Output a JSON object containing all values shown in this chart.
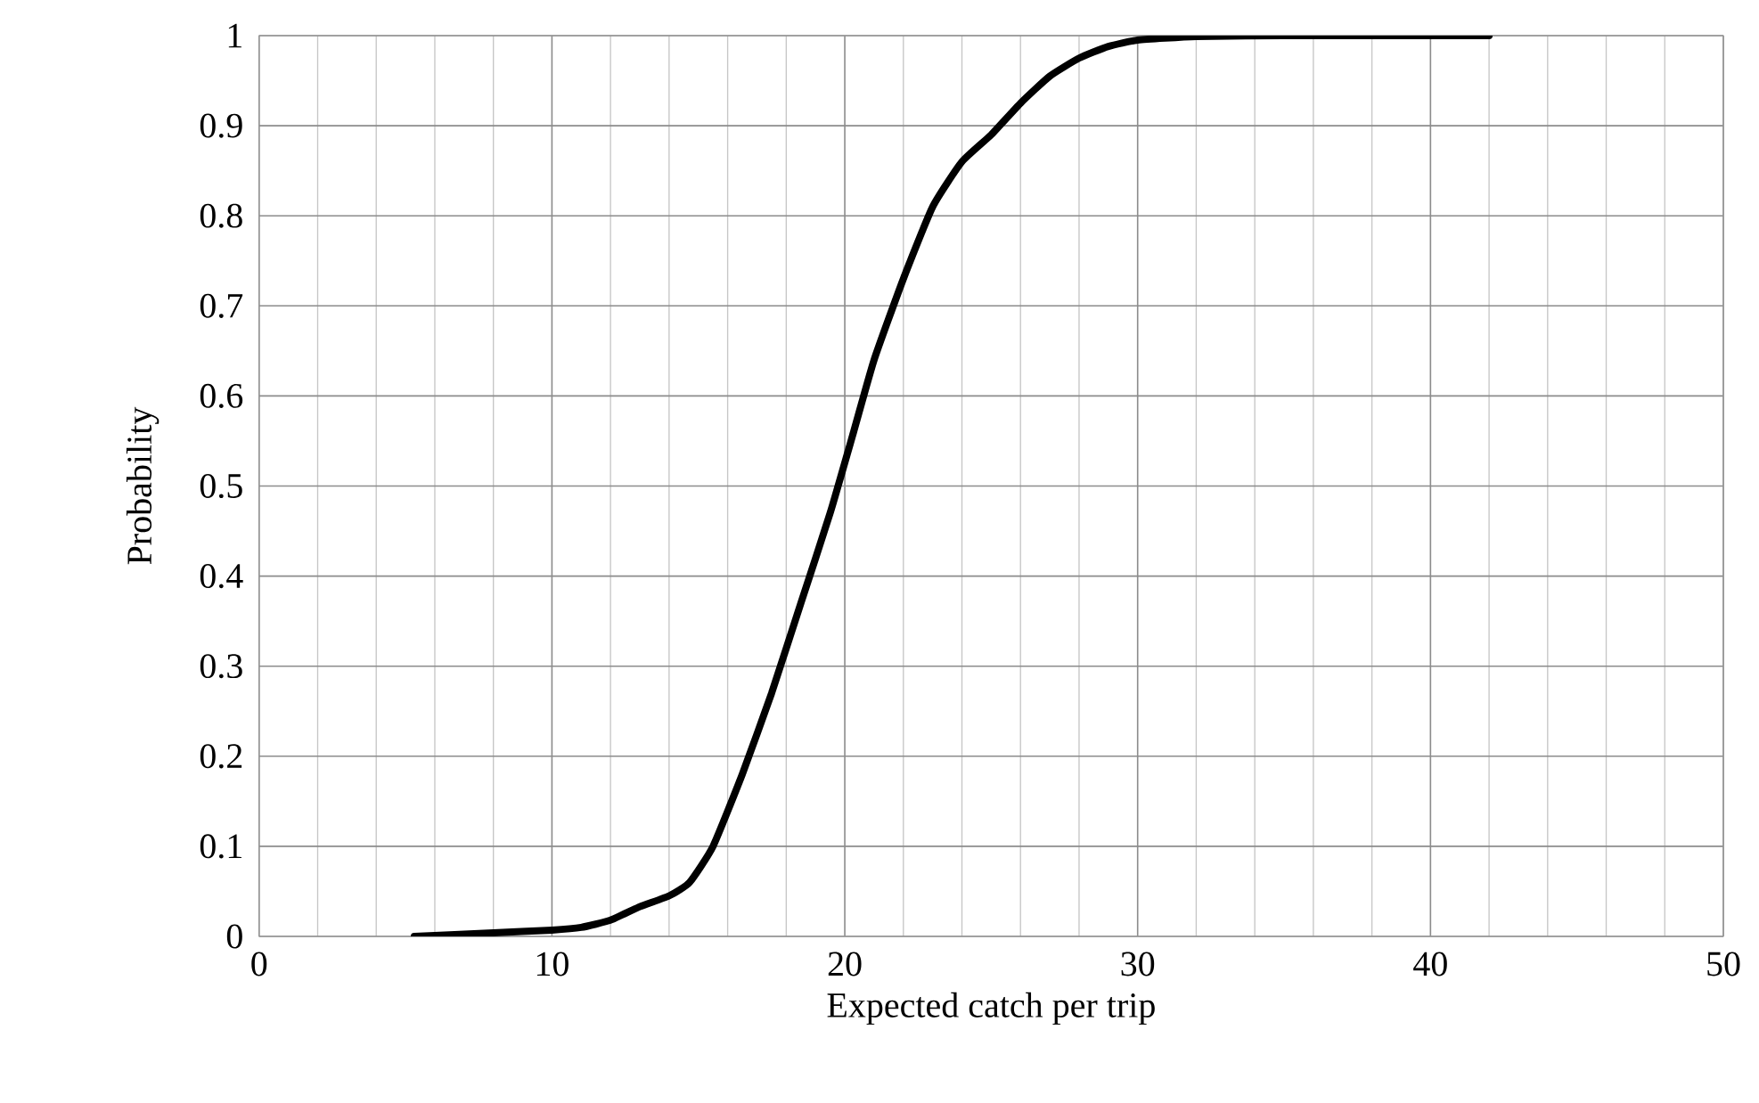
{
  "chart_data": {
    "type": "line",
    "xlabel": "Expected catch per trip",
    "ylabel": "Probability",
    "series": [
      {
        "color": "#000000",
        "x": [
          5.3,
          8,
          10,
          11,
          12,
          13,
          14,
          14.7,
          15.5,
          16.5,
          17.5,
          18.5,
          19.5,
          20.3,
          21,
          22,
          23,
          24,
          25,
          26,
          27,
          28,
          29,
          30,
          32,
          35,
          42
        ],
        "values": [
          0,
          0.004,
          0.007,
          0.01,
          0.018,
          0.033,
          0.045,
          0.06,
          0.1,
          0.18,
          0.27,
          0.37,
          0.47,
          0.56,
          0.64,
          0.73,
          0.81,
          0.86,
          0.89,
          0.925,
          0.955,
          0.975,
          0.988,
          0.995,
          0.999,
          1,
          1
        ]
      }
    ],
    "xlim": [
      0,
      50
    ],
    "ylim": [
      0,
      1
    ],
    "xticks": [
      0,
      10,
      20,
      30,
      40,
      50
    ],
    "yticks": [
      0,
      0.1,
      0.2,
      0.3,
      0.4,
      0.5,
      0.6,
      0.7,
      0.8,
      0.9,
      1
    ],
    "grid": true,
    "marker": "none",
    "line_style": "solid"
  }
}
